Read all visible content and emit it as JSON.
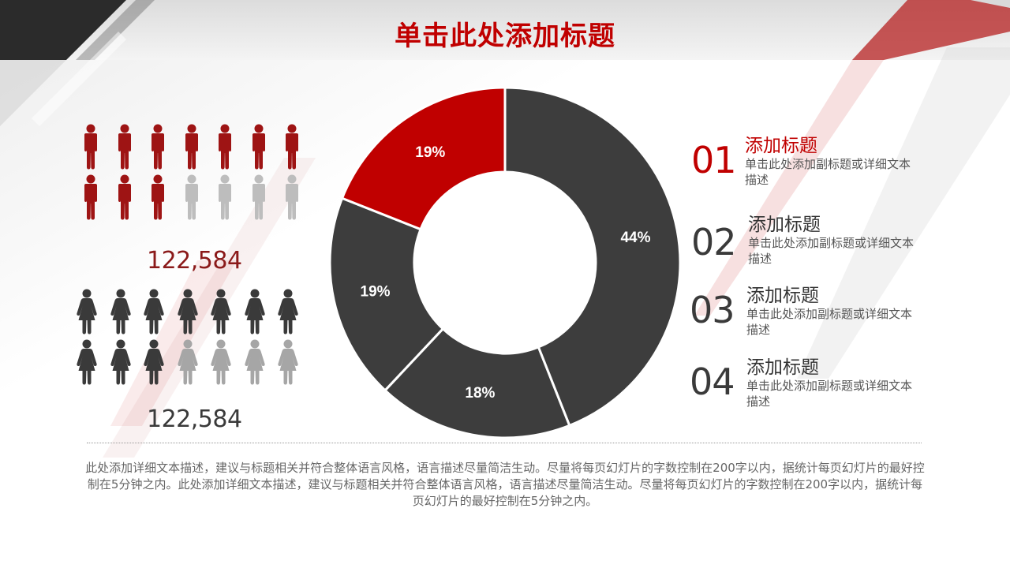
{
  "title": "单击此处添加标题",
  "colors": {
    "accent": "#c00000",
    "dark": "#3d3d3d",
    "male_active": "#9e1414",
    "male_inactive": "#bdbdbd",
    "female_active": "#3a3a3a",
    "female_inactive": "#a6a6a6"
  },
  "icons": {
    "male": "male-person-icon",
    "female": "female-person-icon"
  },
  "infographic": {
    "male": {
      "total_icons": 14,
      "highlighted": 10,
      "count_label": "122,584"
    },
    "female": {
      "total_icons": 14,
      "highlighted": 10,
      "count_label": "122,584"
    }
  },
  "legend": [
    {
      "num": "01",
      "title": "添加标题",
      "desc": "单击此处添加副标题或详细文本描述"
    },
    {
      "num": "02",
      "title": "添加标题",
      "desc": "单击此处添加副标题或详细文本描述"
    },
    {
      "num": "03",
      "title": "添加标题",
      "desc": "单击此处添加副标题或详细文本描述"
    },
    {
      "num": "04",
      "title": "添加标题",
      "desc": "单击此处添加副标题或详细文本描述"
    }
  ],
  "footnote": "此处添加详细文本描述，建议与标题相关并符合整体语言风格，语言描述尽量简洁生动。尽量将每页幻灯片的字数控制在200字以内，据统计每页幻灯片的最好控制在5分钟之内。此处添加详细文本描述，建议与标题相关并符合整体语言风格，语言描述尽量简洁生动。尽量将每页幻灯片的字数控制在200字以内，据统计每页幻灯片的最好控制在5分钟之内。",
  "chart_data": {
    "type": "pie",
    "variant": "donut",
    "slices": [
      {
        "label": "44%",
        "value": 44,
        "color": "#3d3d3d"
      },
      {
        "label": "18%",
        "value": 18,
        "color": "#3d3d3d"
      },
      {
        "label": "19%",
        "value": 19,
        "color": "#3d3d3d"
      },
      {
        "label": "19%",
        "value": 19,
        "color": "#c00000"
      }
    ],
    "start": "12 o'clock",
    "direction": "clockwise"
  }
}
